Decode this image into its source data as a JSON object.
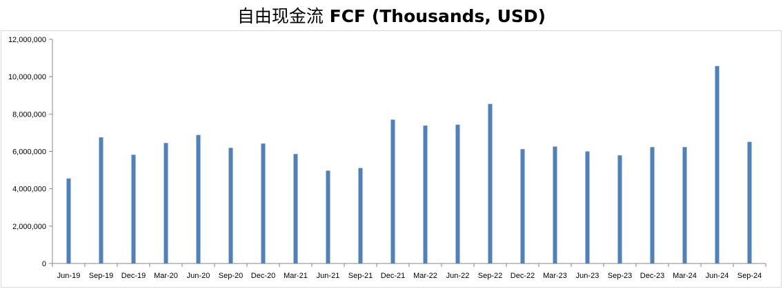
{
  "chart_data": {
    "type": "bar",
    "title_cn": "自由现金流",
    "title_en": "FCF (Thousands, USD)",
    "xlabel": "",
    "ylabel": "",
    "categories": [
      "Jun-19",
      "Sep-19",
      "Dec-19",
      "Mar-20",
      "Jun-20",
      "Sep-20",
      "Dec-20",
      "Mar-21",
      "Jun-21",
      "Sep-21",
      "Dec-21",
      "Mar-22",
      "Jun-22",
      "Sep-22",
      "Dec-22",
      "Mar-23",
      "Jun-23",
      "Sep-23",
      "Dec-23",
      "Mar-24",
      "Jun-24",
      "Sep-24"
    ],
    "series": [
      {
        "color": "#4F81BD",
        "values": [
          4550000,
          6750000,
          5820000,
          6450000,
          6880000,
          6190000,
          6420000,
          5860000,
          4970000,
          5110000,
          7700000,
          7380000,
          7430000,
          8540000,
          6120000,
          6260000,
          6000000,
          5790000,
          6230000,
          6230000,
          10570000,
          6510000
        ]
      }
    ],
    "ylim": [
      0,
      12000000
    ],
    "yticks": [
      "0",
      "2,000,000",
      "4,000,000",
      "6,000,000",
      "8,000,000",
      "10,000,000",
      "12,000,000"
    ],
    "grid": false,
    "legend": "none"
  }
}
